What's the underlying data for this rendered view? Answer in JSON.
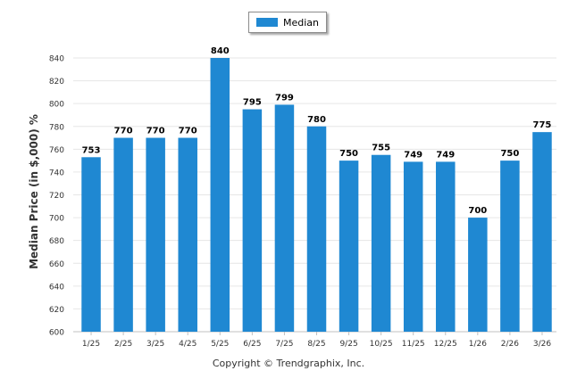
{
  "chart_data": {
    "type": "bar",
    "categories": [
      "1/25",
      "2/25",
      "3/25",
      "4/25",
      "5/25",
      "6/25",
      "7/25",
      "8/25",
      "9/25",
      "10/25",
      "11/25",
      "12/25",
      "1/26",
      "2/26",
      "3/26"
    ],
    "series": [
      {
        "name": "Median",
        "values": [
          753,
          770,
          770,
          770,
          840,
          795,
          799,
          780,
          750,
          755,
          749,
          749,
          700,
          750,
          775
        ]
      }
    ],
    "ylabel": "Median Price (in $,000) %",
    "xlabel": "",
    "ylim": [
      600,
      840
    ],
    "yticks": [
      600,
      620,
      640,
      660,
      680,
      700,
      720,
      740,
      760,
      780,
      800,
      820,
      840
    ],
    "grid": true,
    "legend_position": "top-center",
    "bar_color": "#1f88d2"
  },
  "footer": {
    "copyright": "Copyright © Trendgraphix, Inc."
  }
}
